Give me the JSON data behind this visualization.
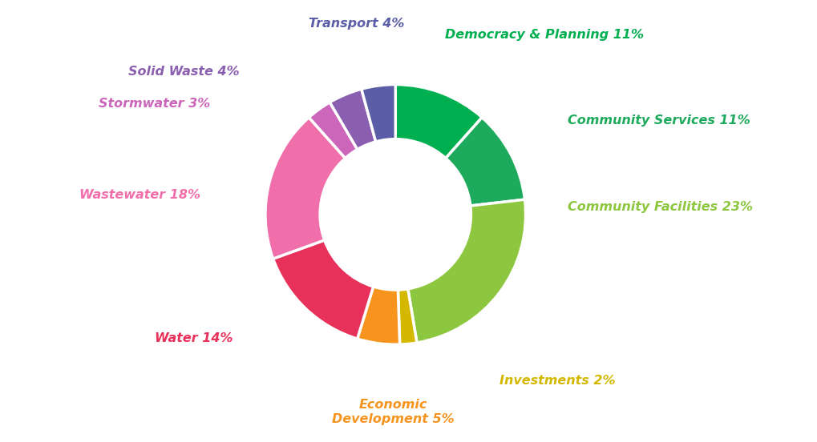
{
  "segments": [
    {
      "label": "Democracy & Planning",
      "pct": 11,
      "color": "#00b050"
    },
    {
      "label": "Community Services",
      "pct": 11,
      "color": "#1eaa5c"
    },
    {
      "label": "Community Facilities",
      "pct": 23,
      "color": "#8dc63f"
    },
    {
      "label": "Investments",
      "pct": 2,
      "color": "#d4b800"
    },
    {
      "label": "Economic Development",
      "pct": 5,
      "color": "#f7941d"
    },
    {
      "label": "Water",
      "pct": 14,
      "color": "#e8315a"
    },
    {
      "label": "Wastewater",
      "pct": 18,
      "color": "#f06eaa"
    },
    {
      "label": "Stormwater",
      "pct": 3,
      "color": "#cc66bb"
    },
    {
      "label": "Solid Waste",
      "pct": 4,
      "color": "#8b5fb0"
    },
    {
      "label": "Transport",
      "pct": 4,
      "color": "#5b5ea6"
    }
  ],
  "label_colors": {
    "Democracy & Planning": "#00b050",
    "Community Services": "#1eaa5c",
    "Community Facilities": "#8dc63f",
    "Investments": "#d4b800",
    "Economic Development": "#f7941d",
    "Water": "#e8315a",
    "Wastewater": "#f06eaa",
    "Stormwater": "#cc66bb",
    "Solid Waste": "#8b5fb0",
    "Transport": "#5b5ea6"
  },
  "label_texts": {
    "Democracy & Planning": "Democracy & Planning 11%",
    "Community Services": "Community Services 11%",
    "Community Facilities": "Community Facilities 23%",
    "Investments": "Investments 2%",
    "Economic Development": "Economic\nDevelopment 5%",
    "Water": "Water 14%",
    "Wastewater": "Wastewater 18%",
    "Stormwater": "Stormwater 3%",
    "Solid Waste": "Solid Waste 4%",
    "Transport": "Transport 4%"
  },
  "bg_color": "#ffffff",
  "figsize": [
    10.19,
    5.52
  ],
  "dpi": 100
}
